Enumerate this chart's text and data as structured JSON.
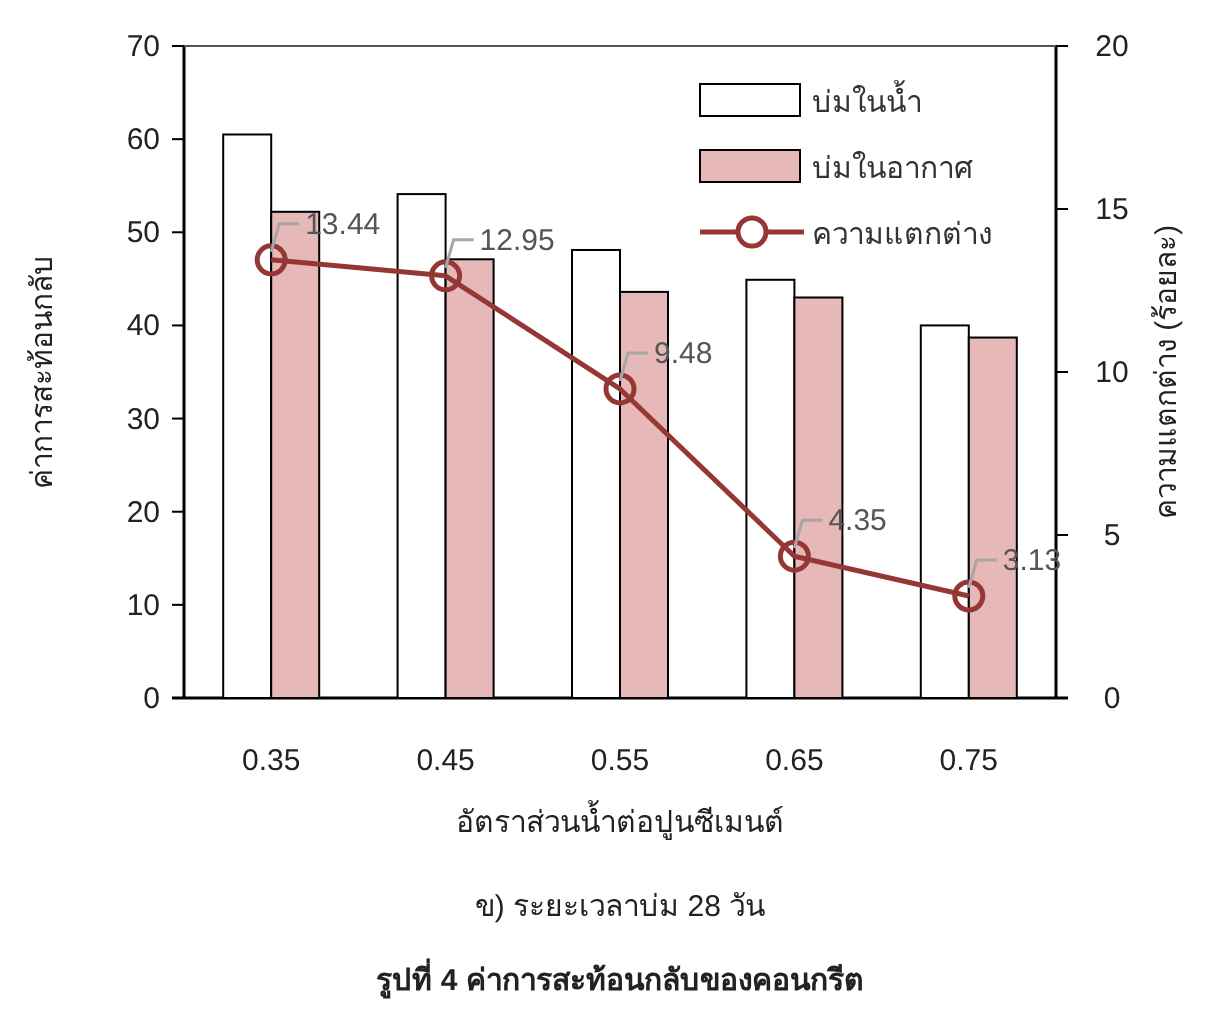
{
  "chart_data": {
    "type": "bar",
    "categories": [
      "0.35",
      "0.45",
      "0.55",
      "0.65",
      "0.75"
    ],
    "series": [
      {
        "name": "บ่มในน้ำ",
        "color": "#ffffff",
        "values": [
          60.5,
          54.1,
          48.1,
          44.9,
          40.0
        ]
      },
      {
        "name": "บ่มในอากาศ",
        "color": "#e6b8b7",
        "values": [
          52.2,
          47.1,
          43.6,
          43.0,
          38.7
        ]
      },
      {
        "name": "ความแตกต่าง",
        "type": "line",
        "axis": "y2",
        "color": "#953735",
        "marker": "circle",
        "values": [
          13.44,
          12.95,
          9.48,
          4.35,
          3.13
        ],
        "data_labels": true
      }
    ],
    "ylim": [
      0,
      70
    ],
    "yticks": [
      0,
      10,
      20,
      30,
      40,
      50,
      60,
      70
    ],
    "y2lim": [
      0,
      20
    ],
    "y2ticks": [
      0,
      5,
      10,
      15,
      20
    ],
    "ylabel": "ค่าการสะท้อนกลับ",
    "y2label": "ความแตกต่าง (ร้อยละ)",
    "xlabel": "อัตราส่วนน้ำต่อปูนซีเมนต์",
    "annotations": [
      "ข) ระยะเวลาบ่ม 28 วัน",
      "รูปที่ 4 ค่าการสะท้อนกลับของคอนกรีต"
    ],
    "legend": "top right",
    "grid": false
  }
}
